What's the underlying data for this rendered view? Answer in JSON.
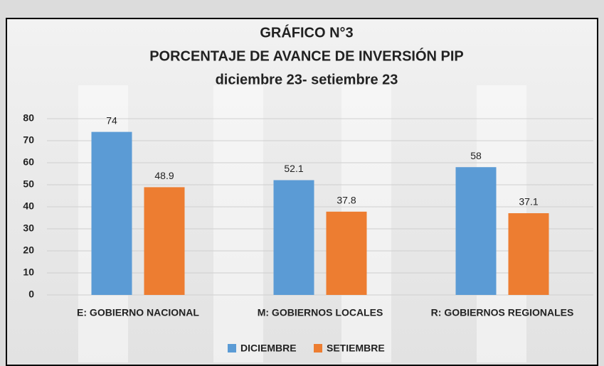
{
  "chart_data": {
    "type": "bar",
    "title": [
      "GRÁFICO N°3",
      "PORCENTAJE DE AVANCE DE INVERSIÓN PIP"
    ],
    "subtitle": "diciembre 23- setiembre 23",
    "categories": [
      "E: GOBIERNO NACIONAL",
      "M: GOBIERNOS LOCALES",
      "R: GOBIERNOS REGIONALES"
    ],
    "series": [
      {
        "name": "DICIEMBRE",
        "color": "#5b9bd5",
        "values": [
          74,
          52.1,
          58
        ]
      },
      {
        "name": "SETIEMBRE",
        "color": "#ed7d31",
        "values": [
          48.9,
          37.8,
          37.1
        ]
      }
    ],
    "ylim": [
      0,
      80
    ],
    "yticks": [
      0,
      10,
      20,
      30,
      40,
      50,
      60,
      70,
      80
    ],
    "grid": true,
    "legend": "bottom"
  }
}
